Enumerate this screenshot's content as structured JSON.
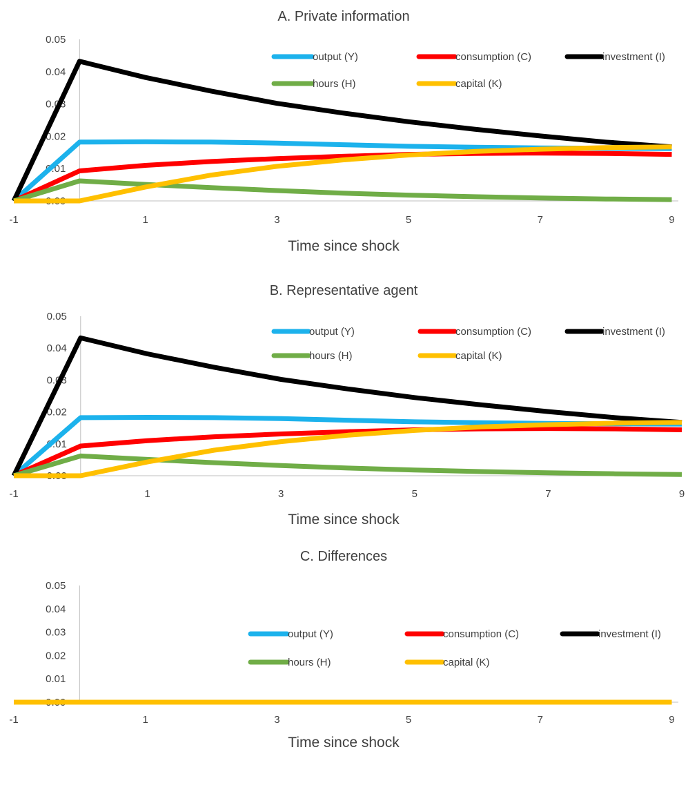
{
  "colors": {
    "output": "#1CB2EC",
    "consumption": "#FF0000",
    "investment": "#000000",
    "hours": "#70AD47",
    "capital": "#FFC000",
    "axis": "#BFBFBF",
    "text": "#404040"
  },
  "chart_data": [
    {
      "type": "line",
      "title": "A. Private information",
      "xlabel": "Time since shock",
      "ylabel": "",
      "x": [
        -1,
        0,
        1,
        2,
        3,
        4,
        5,
        6,
        7,
        8,
        9
      ],
      "xlim": [
        -1,
        9.1
      ],
      "ylim": [
        0,
        0.05
      ],
      "x_ticks": [
        "-1",
        "1",
        "3",
        "5",
        "7",
        "9"
      ],
      "y_ticks": [
        "0.00",
        "0.01",
        "0.02",
        "0.03",
        "0.04",
        "0.05"
      ],
      "legend_position": "top-right",
      "grid": false,
      "series": [
        {
          "name": "output (Y)",
          "color_key": "output",
          "values": [
            0,
            0.0182,
            0.0183,
            0.0182,
            0.0179,
            0.0174,
            0.0169,
            0.0166,
            0.0164,
            0.0163,
            0.0162
          ]
        },
        {
          "name": "consumption (C)",
          "color_key": "consumption",
          "values": [
            0,
            0.0093,
            0.011,
            0.0122,
            0.0131,
            0.0138,
            0.0144,
            0.0147,
            0.0148,
            0.0147,
            0.0144
          ]
        },
        {
          "name": "investment (I)",
          "color_key": "investment",
          "values": [
            0,
            0.0432,
            0.0382,
            0.034,
            0.0302,
            0.0272,
            0.0245,
            0.0222,
            0.0201,
            0.0182,
            0.0167
          ]
        },
        {
          "name": "hours (H)",
          "color_key": "hours",
          "values": [
            0,
            0.0062,
            0.0051,
            0.0041,
            0.0032,
            0.0024,
            0.0018,
            0.0013,
            0.0009,
            0.0006,
            0.0004
          ]
        },
        {
          "name": "capital (K)",
          "color_key": "capital",
          "values": [
            0,
            0,
            0.0043,
            0.008,
            0.0107,
            0.0127,
            0.0142,
            0.0153,
            0.016,
            0.0165,
            0.0167
          ]
        }
      ]
    },
    {
      "type": "line",
      "title": "B. Representative agent",
      "xlabel": "Time since shock",
      "ylabel": "",
      "x": [
        -1,
        0,
        1,
        2,
        3,
        4,
        5,
        6,
        7,
        8,
        9
      ],
      "xlim": [
        -1,
        9
      ],
      "ylim": [
        0,
        0.05
      ],
      "x_ticks": [
        "-1",
        "1",
        "3",
        "5",
        "7",
        "9"
      ],
      "y_ticks": [
        "0.00",
        "0.01",
        "0.02",
        "0.03",
        "0.04",
        "0.05"
      ],
      "legend_position": "top-right",
      "grid": false,
      "series": [
        {
          "name": "output (Y)",
          "color_key": "output",
          "values": [
            0,
            0.0182,
            0.0183,
            0.0182,
            0.0179,
            0.0174,
            0.0169,
            0.0166,
            0.0164,
            0.0163,
            0.0162
          ]
        },
        {
          "name": "consumption (C)",
          "color_key": "consumption",
          "values": [
            0,
            0.0093,
            0.011,
            0.0122,
            0.0131,
            0.0138,
            0.0144,
            0.0147,
            0.0148,
            0.0147,
            0.0144
          ]
        },
        {
          "name": "investment (I)",
          "color_key": "investment",
          "values": [
            0,
            0.0432,
            0.0382,
            0.034,
            0.0302,
            0.0272,
            0.0245,
            0.0222,
            0.0201,
            0.0182,
            0.0167
          ]
        },
        {
          "name": "hours (H)",
          "color_key": "hours",
          "values": [
            0,
            0.0062,
            0.0051,
            0.0041,
            0.0032,
            0.0024,
            0.0018,
            0.0013,
            0.0009,
            0.0006,
            0.0004
          ]
        },
        {
          "name": "capital (K)",
          "color_key": "capital",
          "values": [
            0,
            0,
            0.0043,
            0.008,
            0.0107,
            0.0127,
            0.0142,
            0.0153,
            0.016,
            0.0165,
            0.0167
          ]
        }
      ]
    },
    {
      "type": "line",
      "title": "C. Differences",
      "xlabel": "Time since shock",
      "ylabel": "",
      "x": [
        -1,
        0,
        1,
        2,
        3,
        4,
        5,
        6,
        7,
        8,
        9
      ],
      "xlim": [
        -1,
        9.1
      ],
      "ylim": [
        0,
        0.05
      ],
      "x_ticks": [
        "-1",
        "1",
        "3",
        "5",
        "7",
        "9"
      ],
      "y_ticks": [
        "0.00",
        "0.01",
        "0.02",
        "0.03",
        "0.04",
        "0.05"
      ],
      "legend_position": "top-right",
      "grid": false,
      "series": [
        {
          "name": "output (Y)",
          "color_key": "output",
          "values": [
            0,
            0,
            0,
            0,
            0,
            0,
            0,
            0,
            0,
            0,
            0
          ]
        },
        {
          "name": "consumption (C)",
          "color_key": "consumption",
          "values": [
            0,
            0,
            0,
            0,
            0,
            0,
            0,
            0,
            0,
            0,
            0
          ]
        },
        {
          "name": "investment (I)",
          "color_key": "investment",
          "values": [
            0,
            0,
            0,
            0,
            0,
            0,
            0,
            0,
            0,
            0,
            0
          ]
        },
        {
          "name": "hours (H)",
          "color_key": "hours",
          "values": [
            0,
            0,
            0,
            0,
            0,
            0,
            0,
            0,
            0,
            0,
            0
          ]
        },
        {
          "name": "capital (K)",
          "color_key": "capital",
          "values": [
            0,
            0,
            0,
            0,
            0,
            0,
            0,
            0,
            0,
            0,
            0
          ]
        }
      ]
    }
  ]
}
